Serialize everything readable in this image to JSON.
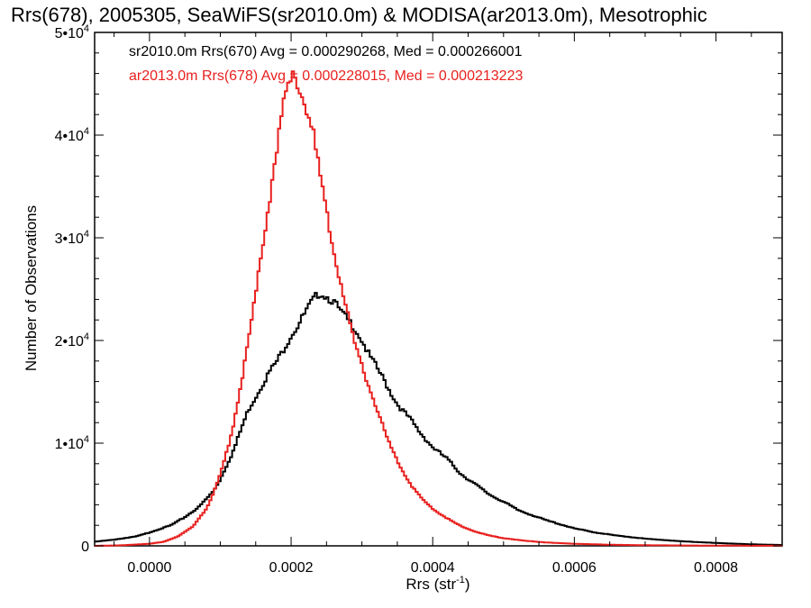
{
  "chart_data": {
    "type": "line",
    "title": "Rrs(678), 2005305, SeaWiFS(sr2010.0m) & MODISA(ar2013.0m), Mesotrophic",
    "xlabel": "Rrs (str",
    "xlabel_superscript": "-1",
    "xlabel_suffix": ")",
    "ylabel": "Number of Observations",
    "xlim": [
      -7.75e-05,
      0.0008935
    ],
    "ylim": [
      0,
      50000
    ],
    "x_ticks": [
      {
        "value": 0.0,
        "label": "0.0000"
      },
      {
        "value": 0.0002,
        "label": "0.0002"
      },
      {
        "value": 0.0004,
        "label": "0.0004"
      },
      {
        "value": 0.0006,
        "label": "0.0006"
      },
      {
        "value": 0.0008,
        "label": "0.0008"
      }
    ],
    "y_ticks": [
      {
        "value": 0,
        "label": "0",
        "exp": ""
      },
      {
        "value": 10000,
        "label": "1•10",
        "exp": "4"
      },
      {
        "value": 20000,
        "label": "2•10",
        "exp": "4"
      },
      {
        "value": 30000,
        "label": "3•10",
        "exp": "4"
      },
      {
        "value": 40000,
        "label": "4•10",
        "exp": "4"
      },
      {
        "value": 50000,
        "label": "5•10",
        "exp": "4"
      }
    ],
    "grid": false,
    "legend_position": "top-left",
    "series": [
      {
        "legend": "sr2010.0m Rrs(670) Avg = 0.000290268, Med = 0.000266001",
        "color": "#000000",
        "peak_x": 0.00024,
        "peak_y": 24700,
        "points": [
          [
            -7.75e-05,
            400
          ],
          [
            -5e-05,
            600
          ],
          [
            -2e-05,
            900
          ],
          [
            0.0,
            1300
          ],
          [
            3e-05,
            2000
          ],
          [
            5e-05,
            2800
          ],
          [
            7e-05,
            3800
          ],
          [
            9e-05,
            5300
          ],
          [
            0.0001,
            6500
          ],
          [
            0.00011,
            8000
          ],
          [
            0.00012,
            9500
          ],
          [
            0.00013,
            11500
          ],
          [
            0.00014,
            13300
          ],
          [
            0.00015,
            14500
          ],
          [
            0.00016,
            15800
          ],
          [
            0.00017,
            17000
          ],
          [
            0.00018,
            18000
          ],
          [
            0.00019,
            19200
          ],
          [
            0.0002,
            20500
          ],
          [
            0.00021,
            21500
          ],
          [
            0.00022,
            22700
          ],
          [
            0.00023,
            23800
          ],
          [
            0.00024,
            24700
          ],
          [
            0.00025,
            24300
          ],
          [
            0.00026,
            23800
          ],
          [
            0.00027,
            22800
          ],
          [
            0.00028,
            22000
          ],
          [
            0.00029,
            21200
          ],
          [
            0.0003,
            20000
          ],
          [
            0.00031,
            18600
          ],
          [
            0.00032,
            17500
          ],
          [
            0.00033,
            16300
          ],
          [
            0.00034,
            15000
          ],
          [
            0.00035,
            13800
          ],
          [
            0.00036,
            13000
          ],
          [
            0.00037,
            12200
          ],
          [
            0.00038,
            11200
          ],
          [
            0.00039,
            10400
          ],
          [
            0.0004,
            9600
          ],
          [
            0.00042,
            8500
          ],
          [
            0.00044,
            7000
          ],
          [
            0.00046,
            6000
          ],
          [
            0.00048,
            5000
          ],
          [
            0.0005,
            4300
          ],
          [
            0.00052,
            3500
          ],
          [
            0.00054,
            3000
          ],
          [
            0.00056,
            2500
          ],
          [
            0.00058,
            2100
          ],
          [
            0.0006,
            1700
          ],
          [
            0.00063,
            1300
          ],
          [
            0.00066,
            1000
          ],
          [
            0.0007,
            700
          ],
          [
            0.00075,
            450
          ],
          [
            0.0008,
            280
          ],
          [
            0.00085,
            150
          ],
          [
            0.0008935,
            80
          ]
        ]
      },
      {
        "legend": "ar2013.0m Rrs(678) Avg = 0.000228015, Med = 0.000213223",
        "color": "#e8211f",
        "peak_x": 0.000205,
        "peak_y": 46000,
        "points": [
          [
            -7.75e-05,
            0
          ],
          [
            -4e-05,
            50
          ],
          [
            0.0,
            200
          ],
          [
            2e-05,
            400
          ],
          [
            4e-05,
            900
          ],
          [
            6e-05,
            1800
          ],
          [
            8e-05,
            3600
          ],
          [
            9e-05,
            5000
          ],
          [
            0.0001,
            7000
          ],
          [
            0.00011,
            9300
          ],
          [
            0.00012,
            12300
          ],
          [
            0.00013,
            16000
          ],
          [
            0.00014,
            20000
          ],
          [
            0.00015,
            24500
          ],
          [
            0.00016,
            29500
          ],
          [
            0.00017,
            34000
          ],
          [
            0.00018,
            39000
          ],
          [
            0.00019,
            43000
          ],
          [
            0.000195,
            44500
          ],
          [
            0.000205,
            46000
          ],
          [
            0.00021,
            45000
          ],
          [
            0.00022,
            43000
          ],
          [
            0.00023,
            40500
          ],
          [
            0.00024,
            36500
          ],
          [
            0.00025,
            32500
          ],
          [
            0.00026,
            28800
          ],
          [
            0.00027,
            25800
          ],
          [
            0.00028,
            22500
          ],
          [
            0.00029,
            19700
          ],
          [
            0.0003,
            17500
          ],
          [
            0.00031,
            15500
          ],
          [
            0.00032,
            13600
          ],
          [
            0.00033,
            11500
          ],
          [
            0.00034,
            9800
          ],
          [
            0.00035,
            8300
          ],
          [
            0.00036,
            7000
          ],
          [
            0.00037,
            5900
          ],
          [
            0.00038,
            5000
          ],
          [
            0.00039,
            4200
          ],
          [
            0.0004,
            3600
          ],
          [
            0.00042,
            2700
          ],
          [
            0.00044,
            1900
          ],
          [
            0.00046,
            1400
          ],
          [
            0.00048,
            1000
          ],
          [
            0.0005,
            750
          ],
          [
            0.00053,
            500
          ],
          [
            0.00056,
            330
          ],
          [
            0.0006,
            200
          ],
          [
            0.00065,
            110
          ],
          [
            0.0007,
            60
          ],
          [
            0.0008,
            20
          ],
          [
            0.0008935,
            5
          ]
        ]
      }
    ]
  }
}
